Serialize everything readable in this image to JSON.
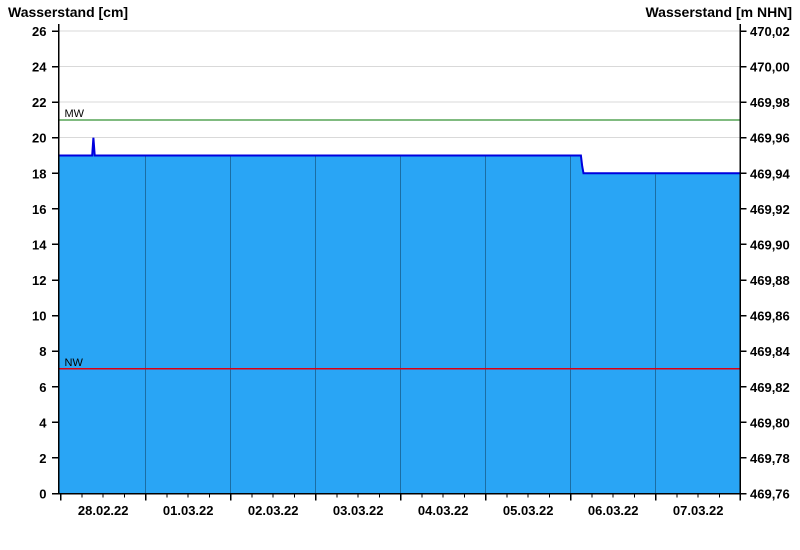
{
  "titles": {
    "left": "Wasserstand [cm]",
    "right": "Wasserstand [m NHN]"
  },
  "chart_data": {
    "type": "area",
    "title_left_axis": "Wasserstand [cm]",
    "title_right_axis": "Wasserstand [m NHN]",
    "x_labels": [
      "28.02.22",
      "01.03.22",
      "02.03.22",
      "03.03.22",
      "04.03.22",
      "05.03.22",
      "06.03.22",
      "07.03.22"
    ],
    "y_left": {
      "unit": "cm",
      "min": 0,
      "max": 26,
      "tick_step": 2,
      "tick_labels_top_to_bottom": [
        "26",
        "24",
        "22",
        "20",
        "18",
        "16",
        "14",
        "12",
        "10",
        "8",
        "6",
        "4",
        "2",
        "0"
      ]
    },
    "y_right": {
      "unit": "m NHN",
      "min": 469.76,
      "max": 470.02,
      "tick_step": 0.02,
      "tick_labels_top_to_bottom": [
        "470,02",
        "470,00",
        "469,98",
        "469,96",
        "469,94",
        "469,92",
        "469,90",
        "469,88",
        "469,86",
        "469,84",
        "469,82",
        "469,80",
        "469,78",
        "469,76"
      ]
    },
    "series": {
      "name": "Wasserstand",
      "points_day_cm": [
        [
          -0.026,
          19
        ],
        [
          0.37,
          19
        ],
        [
          0.385,
          20
        ],
        [
          0.4,
          19
        ],
        [
          6.12,
          19
        ],
        [
          6.135,
          18.4
        ],
        [
          6.15,
          18
        ],
        [
          7.99,
          18
        ]
      ]
    },
    "reference_lines": [
      {
        "label": "MW",
        "value_cm": 21
      },
      {
        "label": "NW",
        "value_cm": 7
      }
    ],
    "grid": {
      "horizontal_step_cm": 2,
      "vertical_day_dividers": true,
      "minor_x_tick_step_days": 0.25
    },
    "colors": {
      "fill": "#29A5F5",
      "series_line": "#0000DD",
      "mw_line": "#007700",
      "nw_line": "#DD0011",
      "grid_line": "#D9D9D9",
      "day_divider": "rgba(0,0,0,0.33)",
      "axis": "#000000"
    }
  }
}
